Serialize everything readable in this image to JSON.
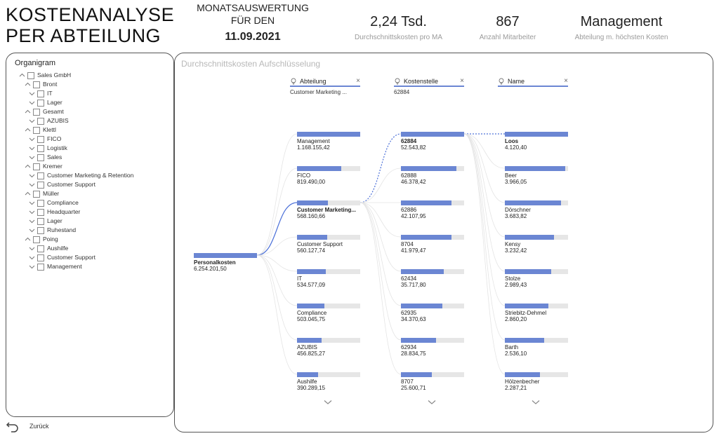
{
  "header": {
    "title_line1": "KOSTENANALYSE",
    "title_line2": "PER ABTEILUNG",
    "monat_line1": "MONATSAUSWERTUNG",
    "monat_line2": "FÜR DEN",
    "date": "11.09.2021",
    "kpis": [
      {
        "value": "2,24 Tsd.",
        "label": "Durchschnittskosten pro MA"
      },
      {
        "value": "867",
        "label": "Anzahl Mitarbeiter"
      },
      {
        "value": "Management",
        "label": "Abteilung m. höchsten Kosten"
      }
    ]
  },
  "organigram": {
    "title": "Organigram",
    "items": [
      {
        "label": "Sales GmbH",
        "level": 0
      },
      {
        "label": "Bront",
        "level": 1
      },
      {
        "label": "IT",
        "level": 2
      },
      {
        "label": "Lager",
        "level": 2
      },
      {
        "label": "Gesamt",
        "level": 1
      },
      {
        "label": "AZUBIS",
        "level": 2
      },
      {
        "label": "Klettl",
        "level": 1
      },
      {
        "label": "FICO",
        "level": 2
      },
      {
        "label": "Logistik",
        "level": 2
      },
      {
        "label": "Sales",
        "level": 2
      },
      {
        "label": "Kremer",
        "level": 1
      },
      {
        "label": "Customer Marketing & Retention",
        "level": 2
      },
      {
        "label": "Customer Support",
        "level": 2
      },
      {
        "label": "Müller",
        "level": 1
      },
      {
        "label": "Compliance",
        "level": 2
      },
      {
        "label": "Headquarter",
        "level": 2
      },
      {
        "label": "Lager",
        "level": 2
      },
      {
        "label": "Ruhestand",
        "level": 2
      },
      {
        "label": "Poing",
        "level": 1
      },
      {
        "label": "Aushilfe",
        "level": 2
      },
      {
        "label": "Customer Support",
        "level": 2
      },
      {
        "label": "Management",
        "level": 2
      }
    ]
  },
  "decomposition": {
    "title": "Durchschnittskosten Aufschlüsselung",
    "root": {
      "name": "Personalkosten",
      "value": "6.254.201,50"
    },
    "columns": [
      {
        "header": "Abteilung",
        "selected": "Customer Marketing ...",
        "nodes": [
          {
            "name": "Management",
            "value": "1.168.155,42",
            "fill": 1.0
          },
          {
            "name": "FICO",
            "value": "819.490,00",
            "fill": 0.7
          },
          {
            "name": "Customer Marketing...",
            "value": "568.160,66",
            "fill": 0.49,
            "selected": true
          },
          {
            "name": "Customer Support",
            "value": "560.127,74",
            "fill": 0.48
          },
          {
            "name": "IT",
            "value": "534.577,09",
            "fill": 0.46
          },
          {
            "name": "Compliance",
            "value": "503.045,75",
            "fill": 0.43
          },
          {
            "name": "AZUBIS",
            "value": "456.825,27",
            "fill": 0.39
          },
          {
            "name": "Aushilfe",
            "value": "390.289,15",
            "fill": 0.33
          }
        ]
      },
      {
        "header": "Kostenstelle",
        "selected": "62884",
        "nodes": [
          {
            "name": "62884",
            "value": "52.543,82",
            "fill": 1.0,
            "selected": true
          },
          {
            "name": "62888",
            "value": "46.378,42",
            "fill": 0.88
          },
          {
            "name": "62886",
            "value": "42.107,95",
            "fill": 0.8
          },
          {
            "name": "8704",
            "value": "41.979,47",
            "fill": 0.8
          },
          {
            "name": "62434",
            "value": "35.717,80",
            "fill": 0.68
          },
          {
            "name": "62935",
            "value": "34.370,63",
            "fill": 0.65
          },
          {
            "name": "62934",
            "value": "28.834,75",
            "fill": 0.55
          },
          {
            "name": "8707",
            "value": "25.600,71",
            "fill": 0.49
          }
        ]
      },
      {
        "header": "Name",
        "selected": "",
        "nodes": [
          {
            "name": "Loos",
            "value": "4.120,40",
            "fill": 1.0,
            "selected": true
          },
          {
            "name": "Beer",
            "value": "3.966,05",
            "fill": 0.96
          },
          {
            "name": "Dörschner",
            "value": "3.683,82",
            "fill": 0.89
          },
          {
            "name": "Kensy",
            "value": "3.232,42",
            "fill": 0.78
          },
          {
            "name": "Stolze",
            "value": "2.989,43",
            "fill": 0.73
          },
          {
            "name": "Striebitz-Dehmel",
            "value": "2.860,20",
            "fill": 0.69
          },
          {
            "name": "Barth",
            "value": "2.536,10",
            "fill": 0.62
          },
          {
            "name": "Hölzenbecher",
            "value": "2.287,21",
            "fill": 0.56
          }
        ]
      }
    ]
  },
  "back": {
    "label": "Zurück"
  },
  "colors": {
    "bar": "#6b86d3",
    "track": "#e6e6e6",
    "link": "#4a6fd8"
  }
}
